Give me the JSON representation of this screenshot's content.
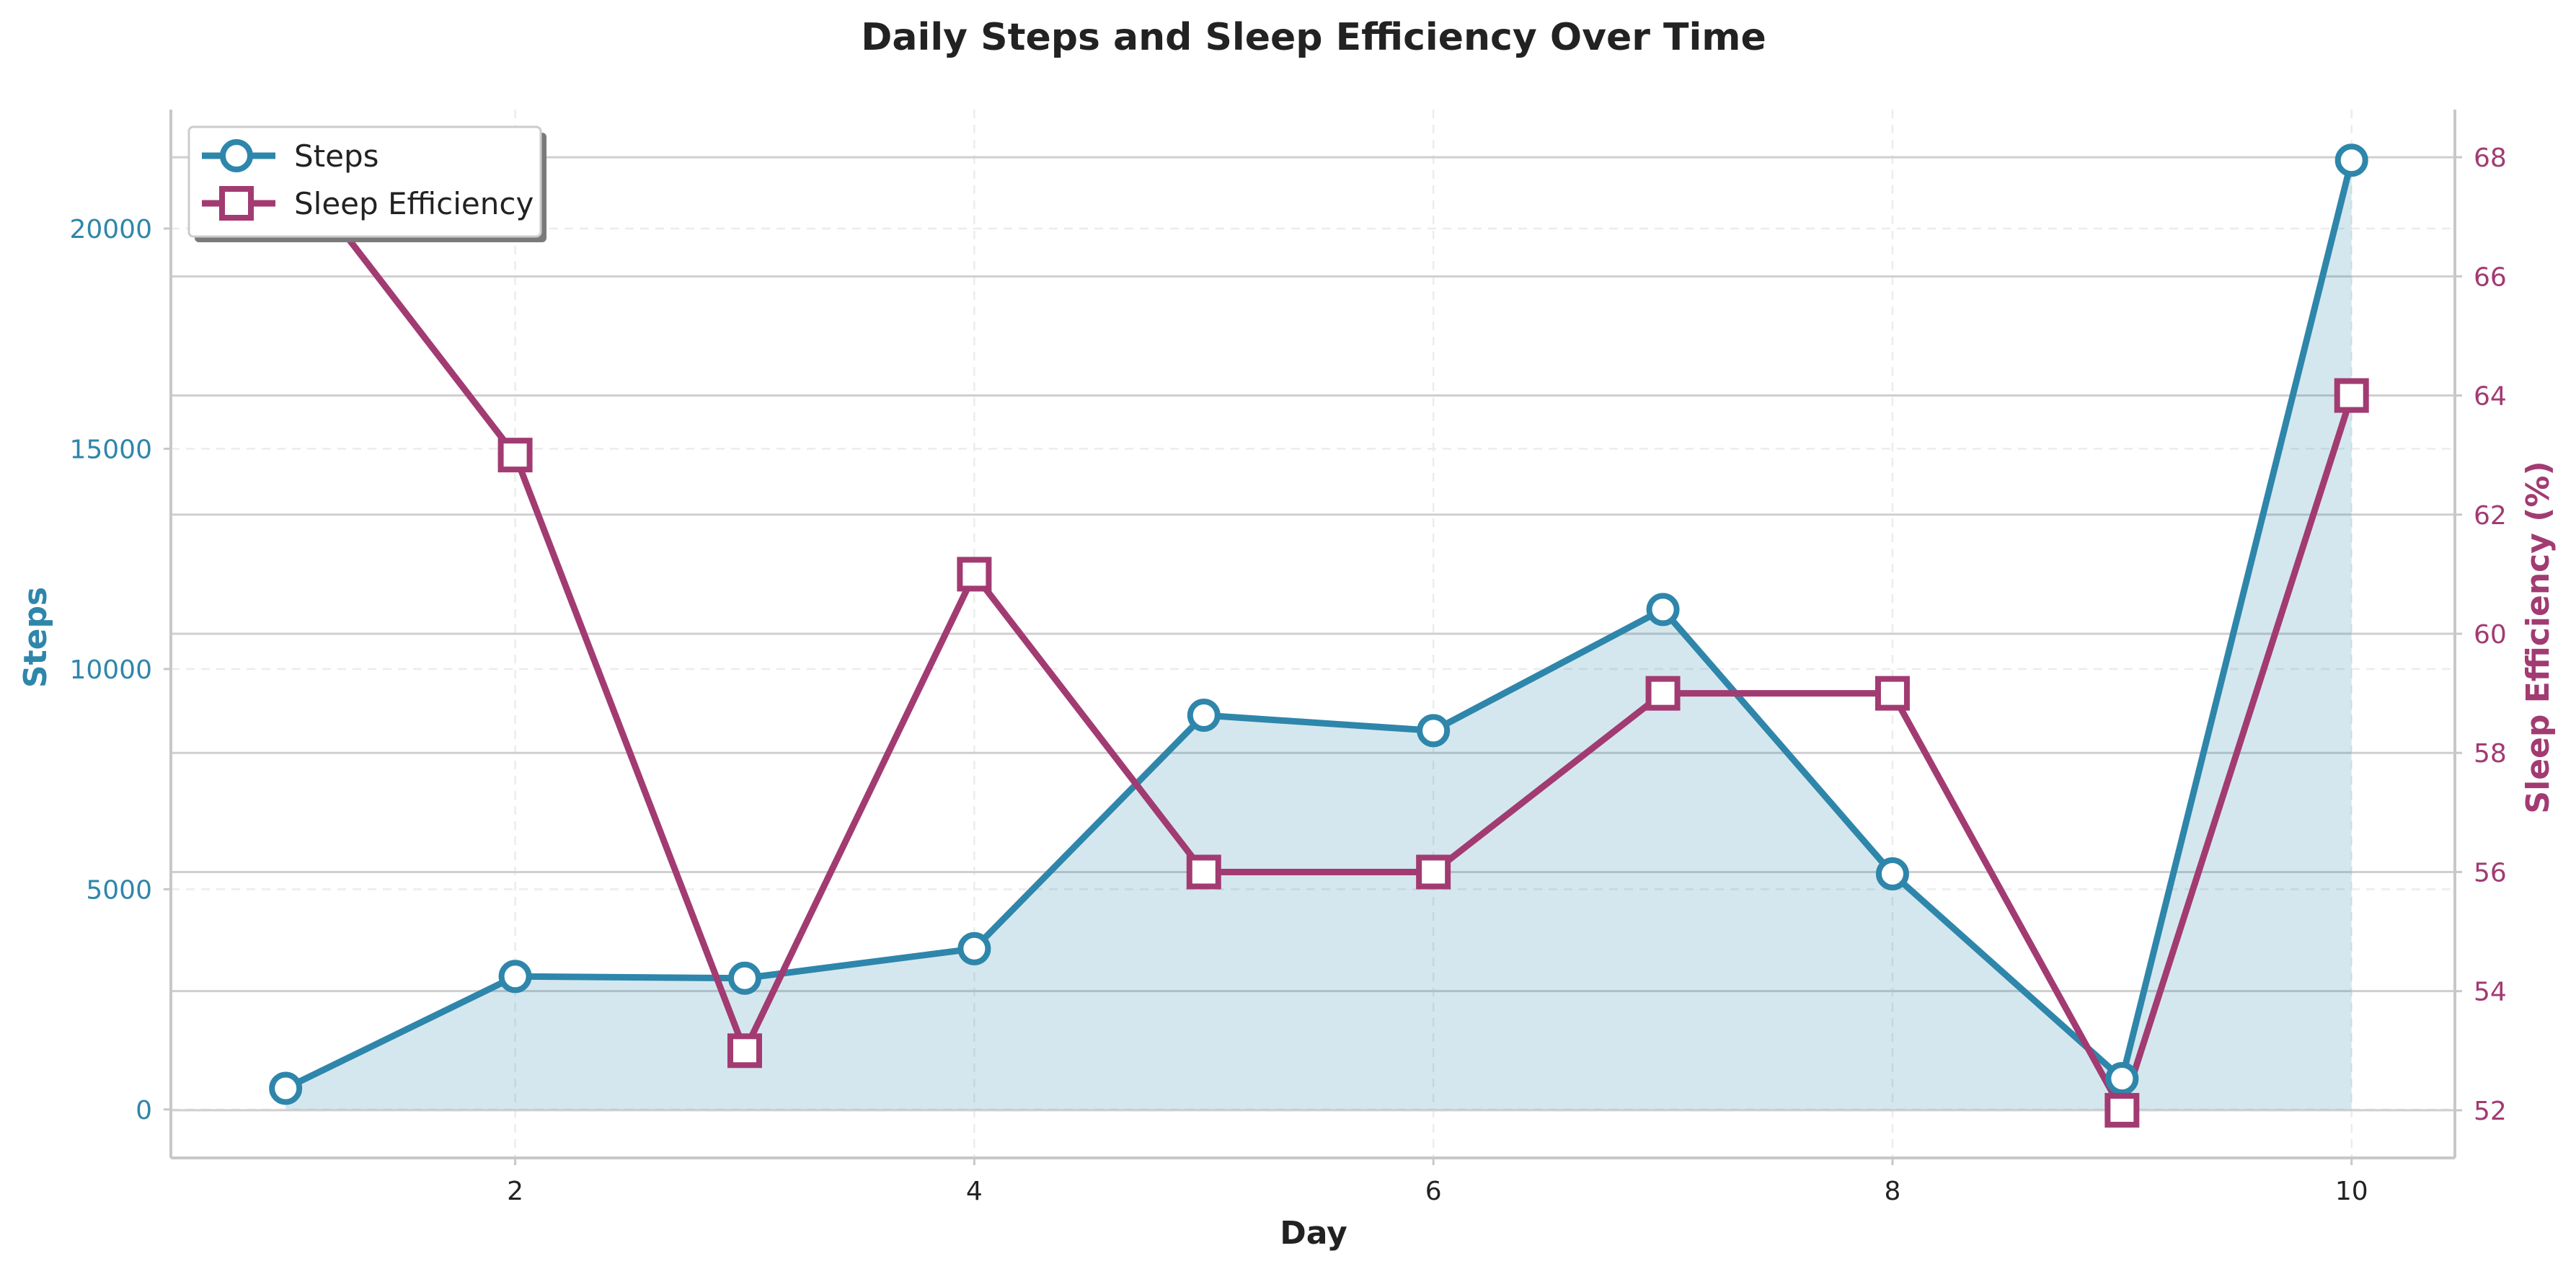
{
  "chart_data": {
    "type": "line",
    "title": "Daily Steps and Sleep Efficiency Over Time",
    "xlabel": "Day",
    "ylabel_left": "Steps",
    "ylabel_right": "Sleep Efficiency (%)",
    "x": [
      1,
      2,
      3,
      4,
      5,
      6,
      7,
      8,
      9,
      10
    ],
    "xlim": [
      0.5,
      10.45
    ],
    "xticks": [
      2,
      4,
      6,
      8,
      10
    ],
    "ylim_left": [
      -1100,
      22700
    ],
    "yticks_left": [
      0,
      5000,
      10000,
      15000,
      20000
    ],
    "ylim_right": [
      51.2,
      68.8
    ],
    "yticks_right": [
      52,
      54,
      56,
      58,
      60,
      62,
      64,
      66,
      68
    ],
    "grid": true,
    "legend_position": "top-left",
    "series": [
      {
        "name": "Steps",
        "axis": "left",
        "marker": "circle",
        "filled_area": true,
        "color": "#2e86ab",
        "values": [
          480,
          3020,
          2980,
          3650,
          8950,
          8600,
          11350,
          5350,
          700,
          21550
        ]
      },
      {
        "name": "Sleep Efficiency",
        "axis": "right",
        "marker": "square",
        "filled_area": false,
        "color": "#a23b72",
        "values": [
          68,
          63,
          53,
          61,
          56,
          56,
          59,
          59,
          52,
          64
        ]
      }
    ]
  }
}
